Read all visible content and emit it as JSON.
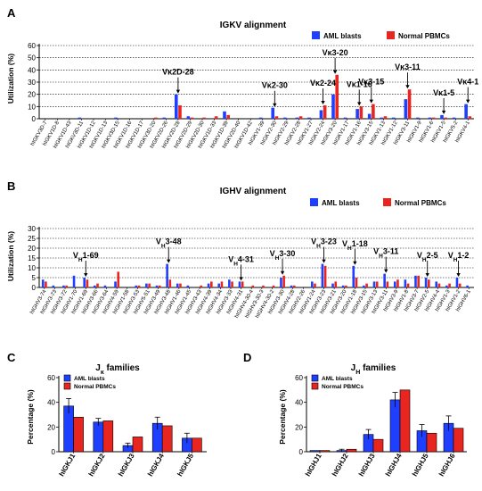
{
  "colors": {
    "aml": "#1f3fff",
    "pbmc": "#e8261f",
    "axis": "#000000"
  },
  "chart_data": [
    {
      "panel": "A",
      "type": "bar",
      "title": "IGKV alignment",
      "ylabel": "Utilization (%)",
      "ylim": [
        0,
        60
      ],
      "yticks": [
        0,
        10,
        20,
        30,
        40,
        50,
        60
      ],
      "grid": "dotted horizontal",
      "legend_placement": "top-right",
      "categories": [
        "hIGKV3D-7",
        "hIGKV1D-8",
        "hIGKV1D-43",
        "hIGKV3D-11",
        "hIGKV1D-12",
        "hIGKV1D-13",
        "hIGKV3D-15",
        "hIGKV1D-16",
        "hIGKV1D-17",
        "hIGKV3D-20",
        "hIGKV2D-26",
        "hIGKV2D-28",
        "hIGKV2D-29",
        "hIGKV2D-30",
        "hIGKV1D-33",
        "hIGKV1D-39",
        "hIGKV2D-40",
        "hIGKV1D-42",
        "hIGKV1-39",
        "hIGKV2-30",
        "hIGKV2-29",
        "hIGKV2-28",
        "hIGKV1-27",
        "hIGKV2-24",
        "hIGKV3-20",
        "hIGKV1-17",
        "hIGKV1-16",
        "hIGKV3-15",
        "hIGKV1-13",
        "hIGKV1-12",
        "hIGKV3-11",
        "hIGKV1-9",
        "hIGKV1-6",
        "hIGKV1-5",
        "hIGKV5-2",
        "hIGKV4-1"
      ],
      "series": [
        {
          "name": "AML blasts",
          "values": [
            0,
            0,
            0,
            1,
            0,
            0,
            1,
            0,
            0,
            0,
            1,
            20,
            2,
            0,
            0,
            6,
            0,
            0,
            1,
            9,
            1,
            1,
            1,
            7,
            20,
            1,
            8,
            4,
            1,
            1,
            16,
            1,
            1,
            3,
            1,
            12
          ]
        },
        {
          "name": "Normal PBMCs",
          "values": [
            0,
            0,
            0,
            0,
            0,
            0,
            0,
            0,
            0,
            1,
            0,
            11,
            1,
            1,
            2,
            3,
            0,
            0,
            0,
            2,
            0,
            2,
            0,
            11,
            36,
            0,
            10,
            12,
            2,
            0,
            24,
            0,
            1,
            1,
            0,
            2
          ]
        }
      ],
      "annotations": [
        {
          "text": "Vκ2D-28",
          "category": "hIGKV2D-28"
        },
        {
          "text": "Vκ2-30",
          "category": "hIGKV2-30"
        },
        {
          "text": "Vκ2-24",
          "category": "hIGKV2-24"
        },
        {
          "text": "Vκ3-20",
          "category": "hIGKV3-20"
        },
        {
          "text": "Vκ1-16",
          "category": "hIGKV1-16"
        },
        {
          "text": "Vκ3-15",
          "category": "hIGKV3-15"
        },
        {
          "text": "Vκ3-11",
          "category": "hIGKV3-11"
        },
        {
          "text": "Vκ1-5",
          "category": "hIGKV1-5"
        },
        {
          "text": "Vκ4-1",
          "category": "hIGKV4-1"
        }
      ]
    },
    {
      "panel": "B",
      "type": "bar",
      "title": "IGHV alignment",
      "ylabel": "Utilization (%)",
      "ylim": [
        0,
        30
      ],
      "yticks": [
        0,
        5,
        10,
        15,
        20,
        25,
        30
      ],
      "grid": "dotted horizontal",
      "legend_placement": "top-right",
      "categories": [
        "hIGHV3-74",
        "hIGHV3-73",
        "hIGHV3-72",
        "hIGHV1-70",
        "hIGHV1-69",
        "hIGHV3-66",
        "hIGHV3-64",
        "hIGHV4-59",
        "hIGHV1-58",
        "hIGHV3-53",
        "hIGHV5-51",
        "hIGHV3-49",
        "hIGHV3-48",
        "hIGHV1-46",
        "hIGHV1-45",
        "hIGHV3-43",
        "hIGHV4-39",
        "hIGHV4-34",
        "hIGHV3-33",
        "hIGHV4-31",
        "hIGHV4-30-4",
        "hIGHV3-30-3",
        "hIGHV4-30-2",
        "hIGHV3-30",
        "hIGHV4-28",
        "hIGHV2-26",
        "hIGHV1-24",
        "hIGHV3-23",
        "hIGHV3-21",
        "hIGHV3-20",
        "hIGHV1-18",
        "hIGHV3-15",
        "hIGHV3-13",
        "hIGHV3-11",
        "hIGHV3-9",
        "hIGHV1-8",
        "hIGHV3-7",
        "hIGHV2-5",
        "hIGHV4-4",
        "hIGHV1-3",
        "hIGHV1-2",
        "hIGHV6-1"
      ],
      "series": [
        {
          "name": "AML blasts",
          "values": [
            4,
            1,
            1,
            6,
            5,
            1,
            1,
            3,
            0,
            1,
            2,
            1,
            12,
            2,
            1,
            0,
            2,
            2,
            4,
            3,
            0,
            0,
            0,
            5,
            1,
            0,
            3,
            12,
            2,
            1,
            11,
            1,
            3,
            7,
            3,
            4,
            6,
            5,
            3,
            1,
            5,
            1
          ]
        },
        {
          "name": "Normal PBMCs",
          "values": [
            3,
            0,
            1,
            0,
            4,
            2,
            0,
            8,
            0,
            1,
            2,
            1,
            4,
            2,
            0,
            1,
            3,
            3,
            3,
            3,
            1,
            1,
            1,
            6,
            1,
            0,
            2,
            11,
            3,
            1,
            5,
            2,
            3,
            3,
            4,
            2,
            6,
            4,
            2,
            2,
            2,
            0
          ]
        }
      ],
      "annotations": [
        {
          "text": "V",
          "sub": "H",
          "rest": "1-69",
          "category": "hIGHV1-69"
        },
        {
          "text": "V",
          "sub": "H",
          "rest": "3-48",
          "category": "hIGHV3-48"
        },
        {
          "text": "V",
          "sub": "H",
          "rest": "4-31",
          "category": "hIGHV4-31"
        },
        {
          "text": "V",
          "sub": "H",
          "rest": "3-30",
          "category": "hIGHV3-30"
        },
        {
          "text": "V",
          "sub": "H",
          "rest": "3-23",
          "category": "hIGHV3-23"
        },
        {
          "text": "V",
          "sub": "H",
          "rest": "1-18",
          "category": "hIGHV1-18"
        },
        {
          "text": "V",
          "sub": "H",
          "rest": "3-11",
          "category": "hIGHV3-11"
        },
        {
          "text": "V",
          "sub": "H",
          "rest": "2-5",
          "category": "hIGHV2-5"
        },
        {
          "text": "V",
          "sub": "H",
          "rest": "1-2",
          "category": "hIGHV1-2"
        }
      ]
    },
    {
      "panel": "C",
      "type": "bar",
      "title": "J",
      "title_sub": "κ",
      "title_rest": " families",
      "ylabel": "Percentage (%)",
      "ylim": [
        0,
        60
      ],
      "yticks": [
        0,
        20,
        40,
        60
      ],
      "legend_placement": "top-left",
      "categories": [
        "hIGKJ1",
        "hIGKJ2",
        "hIGKJ3",
        "hIGKJ4",
        "hIGKJ5"
      ],
      "series": [
        {
          "name": "AML blasts",
          "values": [
            37,
            24,
            5,
            23,
            11
          ],
          "errors": [
            6,
            3,
            2,
            5,
            4
          ]
        },
        {
          "name": "Normal PBMCs",
          "values": [
            28,
            25,
            12,
            21,
            11
          ],
          "errors": [
            0,
            0,
            0,
            0,
            0
          ]
        }
      ]
    },
    {
      "panel": "D",
      "type": "bar",
      "title": "J",
      "title_sub": "H",
      "title_rest": " families",
      "ylabel": "Percentage (%)",
      "ylim": [
        0,
        60
      ],
      "yticks": [
        0,
        20,
        40,
        60
      ],
      "legend_placement": "top-left",
      "categories": [
        "hIGHJ1",
        "hIGHJ2",
        "hIGHJ3",
        "hIGHJ4",
        "hIGHJ5",
        "hIGHJ6"
      ],
      "series": [
        {
          "name": "AML blasts",
          "values": [
            1,
            1,
            14,
            42,
            17,
            23
          ],
          "errors": [
            0,
            1,
            4,
            6,
            5,
            6
          ]
        },
        {
          "name": "Normal PBMCs",
          "values": [
            1,
            2,
            10,
            50,
            15,
            19
          ],
          "errors": [
            0,
            0,
            0,
            0,
            0,
            0
          ]
        }
      ]
    }
  ]
}
